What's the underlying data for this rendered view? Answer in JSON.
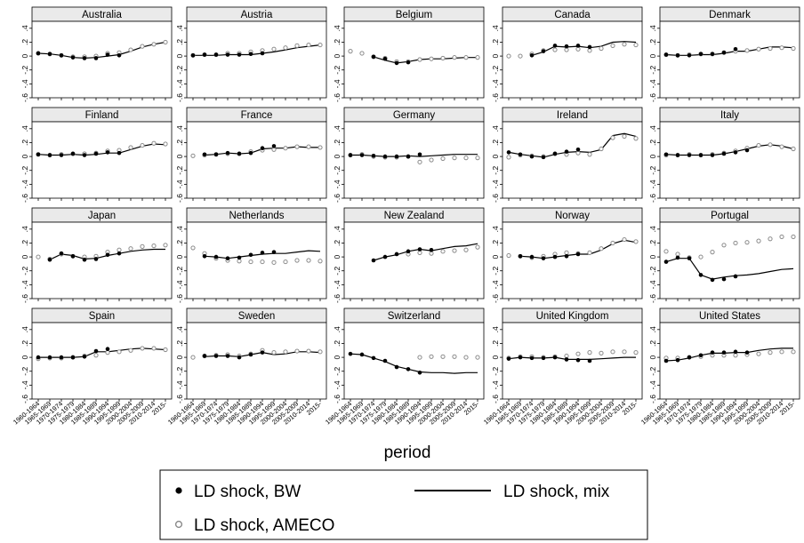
{
  "chart_data": {
    "type": "line",
    "xlabel": "period",
    "periods": [
      "1960-1964",
      "1965-1969",
      "1970-1974",
      "1975-1979",
      "1980-1984",
      "1985-1989",
      "1990-1994",
      "1995-1999",
      "2000-2004",
      "2005-2009",
      "2010-2014",
      "2015-"
    ],
    "y_ticks": [
      ".4",
      ".2",
      "0",
      "-.2",
      "-.4",
      "-.6"
    ],
    "ylim": [
      -0.6,
      0.5
    ],
    "legend": {
      "placement": "bottom",
      "items": [
        {
          "key": "bw",
          "label": "LD shock, BW",
          "marker": "filled-dot"
        },
        {
          "key": "mix",
          "label": "LD shock, mix",
          "marker": "line"
        },
        {
          "key": "ameco",
          "label": "LD shock, AMECO",
          "marker": "hollow-dot"
        }
      ]
    },
    "panels": [
      {
        "title": "Australia",
        "bw": [
          0.04,
          0.03,
          0.01,
          -0.02,
          -0.03,
          -0.03,
          0.02,
          0.01,
          null,
          null,
          null,
          null
        ],
        "mix": [
          0.04,
          0.03,
          0.01,
          -0.02,
          -0.03,
          -0.02,
          0.0,
          0.02,
          0.07,
          0.13,
          0.17,
          0.2
        ],
        "ameco": [
          0.04,
          0.03,
          0.01,
          -0.01,
          -0.01,
          0.0,
          0.04,
          0.05,
          0.09,
          0.14,
          0.17,
          0.2
        ]
      },
      {
        "title": "Austria",
        "bw": [
          0.01,
          0.02,
          0.02,
          0.02,
          0.02,
          0.03,
          0.04,
          null,
          null,
          null,
          null,
          null
        ],
        "mix": [
          0.01,
          0.01,
          0.01,
          0.02,
          0.02,
          0.02,
          0.04,
          0.06,
          0.09,
          0.12,
          0.14,
          0.16
        ],
        "ameco": [
          0.01,
          0.02,
          0.02,
          0.04,
          0.04,
          0.06,
          0.08,
          0.1,
          0.12,
          0.15,
          0.16,
          0.16
        ]
      },
      {
        "title": "Belgium",
        "bw": [
          null,
          null,
          -0.01,
          -0.04,
          -0.1,
          -0.09,
          null,
          null,
          null,
          null,
          null,
          null
        ],
        "mix": [
          null,
          null,
          -0.01,
          -0.06,
          -0.1,
          -0.08,
          -0.05,
          -0.04,
          -0.04,
          -0.03,
          -0.02,
          -0.02
        ],
        "ameco": [
          0.07,
          0.04,
          -0.01,
          -0.03,
          -0.08,
          -0.08,
          -0.05,
          -0.04,
          -0.03,
          -0.02,
          -0.02,
          -0.02
        ]
      },
      {
        "title": "Canada",
        "bw": [
          null,
          null,
          0.01,
          0.07,
          0.15,
          0.14,
          0.15,
          0.13,
          null,
          null,
          null,
          null
        ],
        "mix": [
          null,
          null,
          0.01,
          0.06,
          0.14,
          0.13,
          0.14,
          0.12,
          0.14,
          0.2,
          0.21,
          0.2
        ],
        "ameco": [
          0.0,
          0.0,
          0.03,
          0.08,
          0.09,
          0.09,
          0.1,
          0.08,
          0.11,
          0.15,
          0.17,
          0.16
        ]
      },
      {
        "title": "Denmark",
        "bw": [
          0.02,
          0.01,
          0.01,
          0.03,
          0.03,
          0.05,
          0.1,
          null,
          null,
          null,
          null,
          null
        ],
        "mix": [
          0.02,
          0.01,
          0.01,
          0.02,
          0.02,
          0.04,
          0.07,
          0.07,
          0.1,
          0.13,
          0.13,
          0.12
        ],
        "ameco": [
          0.02,
          0.01,
          0.02,
          0.03,
          0.03,
          0.05,
          0.07,
          0.08,
          0.1,
          0.11,
          0.12,
          0.11
        ]
      },
      {
        "title": "Finland",
        "bw": [
          0.03,
          0.02,
          0.02,
          0.04,
          0.02,
          0.04,
          0.06,
          0.05,
          null,
          null,
          null,
          null
        ],
        "mix": [
          0.03,
          0.02,
          0.02,
          0.03,
          0.02,
          0.03,
          0.05,
          0.05,
          0.1,
          0.15,
          0.18,
          0.17
        ],
        "ameco": [
          0.03,
          0.02,
          0.03,
          0.04,
          0.04,
          0.05,
          0.08,
          0.09,
          0.13,
          0.16,
          0.19,
          0.18
        ]
      },
      {
        "title": "France",
        "bw": [
          null,
          0.03,
          0.03,
          0.05,
          0.04,
          0.05,
          0.12,
          0.15,
          null,
          null,
          null,
          null
        ],
        "mix": [
          null,
          0.02,
          0.03,
          0.05,
          0.04,
          0.05,
          0.11,
          0.12,
          0.12,
          0.14,
          0.13,
          0.13
        ],
        "ameco": [
          0.01,
          0.02,
          0.03,
          0.04,
          0.04,
          0.07,
          0.09,
          0.1,
          0.12,
          0.14,
          0.14,
          0.13
        ]
      },
      {
        "title": "Germany",
        "bw": [
          0.02,
          0.02,
          0.01,
          0.0,
          0.0,
          0.0,
          0.03,
          null,
          null,
          null,
          null,
          null
        ],
        "mix": [
          0.02,
          0.02,
          0.01,
          0.0,
          0.0,
          0.01,
          0.0,
          0.01,
          0.02,
          0.03,
          0.03,
          0.03
        ],
        "ameco": [
          0.02,
          0.03,
          0.0,
          -0.01,
          -0.01,
          0.0,
          -0.08,
          -0.05,
          -0.03,
          -0.02,
          -0.02,
          -0.02
        ]
      },
      {
        "title": "Ireland",
        "bw": [
          0.06,
          0.03,
          0.0,
          -0.01,
          0.04,
          0.07,
          0.1,
          null,
          null,
          null,
          null,
          null
        ],
        "mix": [
          0.06,
          0.03,
          0.01,
          -0.01,
          0.03,
          0.06,
          0.07,
          0.06,
          0.1,
          0.3,
          0.33,
          0.29
        ],
        "ameco": [
          -0.01,
          0.02,
          0.01,
          0.0,
          0.04,
          0.03,
          0.05,
          0.03,
          0.11,
          0.27,
          0.29,
          0.26
        ]
      },
      {
        "title": "Italy",
        "bw": [
          0.03,
          0.02,
          0.02,
          0.02,
          0.02,
          0.04,
          0.06,
          0.09,
          null,
          null,
          null,
          null
        ],
        "mix": [
          0.03,
          0.02,
          0.02,
          0.02,
          0.02,
          0.04,
          0.07,
          0.11,
          0.15,
          0.17,
          0.15,
          0.11
        ],
        "ameco": [
          0.02,
          0.02,
          0.03,
          0.02,
          0.03,
          0.05,
          0.08,
          0.12,
          0.16,
          0.17,
          0.14,
          0.11
        ]
      },
      {
        "title": "Japan",
        "bw": [
          null,
          -0.04,
          0.05,
          0.01,
          -0.04,
          -0.03,
          0.03,
          0.05,
          null,
          null,
          null,
          null
        ],
        "mix": [
          null,
          -0.04,
          0.04,
          0.02,
          -0.03,
          -0.02,
          0.02,
          0.05,
          0.08,
          0.1,
          0.11,
          0.11
        ],
        "ameco": [
          0.0,
          -0.03,
          0.04,
          0.01,
          0.0,
          0.01,
          0.07,
          0.1,
          0.12,
          0.15,
          0.16,
          0.17
        ]
      },
      {
        "title": "Netherlands",
        "bw": [
          null,
          0.01,
          0.0,
          -0.02,
          -0.01,
          0.03,
          0.06,
          0.07,
          null,
          null,
          null,
          null
        ],
        "mix": [
          null,
          0.01,
          0.0,
          -0.02,
          0.0,
          0.02,
          0.04,
          0.05,
          0.05,
          0.07,
          0.09,
          0.08
        ],
        "ameco": [
          0.13,
          0.05,
          -0.02,
          -0.05,
          -0.06,
          -0.07,
          -0.07,
          -0.08,
          -0.07,
          -0.05,
          -0.05,
          -0.06
        ]
      },
      {
        "title": "New Zealand",
        "bw": [
          null,
          null,
          -0.05,
          0.0,
          0.04,
          0.08,
          0.11,
          0.1,
          null,
          null,
          null,
          null
        ],
        "mix": [
          null,
          null,
          -0.05,
          0.0,
          0.03,
          0.08,
          0.11,
          0.09,
          0.12,
          0.15,
          0.16,
          0.19
        ],
        "ameco": [
          null,
          null,
          null,
          null,
          null,
          0.04,
          0.06,
          0.05,
          0.08,
          0.09,
          0.1,
          0.14
        ]
      },
      {
        "title": "Norway",
        "bw": [
          null,
          0.01,
          0.0,
          -0.02,
          0.0,
          0.01,
          0.04,
          null,
          null,
          null,
          null,
          null
        ],
        "mix": [
          null,
          0.01,
          0.0,
          -0.02,
          0.0,
          0.02,
          0.04,
          0.04,
          0.1,
          0.19,
          0.24,
          0.21
        ],
        "ameco": [
          0.02,
          0.01,
          -0.01,
          0.01,
          0.04,
          0.06,
          0.05,
          0.06,
          0.12,
          0.2,
          0.25,
          0.22
        ]
      },
      {
        "title": "Portugal",
        "bw": [
          -0.07,
          -0.01,
          -0.02,
          -0.26,
          -0.33,
          -0.32,
          -0.28,
          null,
          null,
          null,
          null,
          null
        ],
        "mix": [
          -0.07,
          -0.02,
          -0.02,
          -0.26,
          -0.32,
          -0.29,
          -0.27,
          -0.26,
          -0.24,
          -0.21,
          -0.18,
          -0.17
        ],
        "ameco": [
          0.08,
          0.04,
          -0.01,
          0.0,
          0.07,
          0.17,
          0.2,
          0.21,
          0.23,
          0.26,
          0.29,
          0.29
        ]
      },
      {
        "title": "Spain",
        "bw": [
          0.0,
          0.0,
          0.0,
          0.0,
          0.01,
          0.09,
          0.12,
          null,
          null,
          null,
          null,
          null
        ],
        "mix": [
          0.0,
          0.0,
          0.0,
          0.0,
          0.01,
          0.08,
          0.08,
          0.1,
          0.12,
          0.13,
          0.12,
          0.11
        ],
        "ameco": [
          -0.02,
          -0.01,
          -0.01,
          0.0,
          0.02,
          0.03,
          0.07,
          0.08,
          0.1,
          0.13,
          0.13,
          0.11
        ]
      },
      {
        "title": "Sweden",
        "bw": [
          null,
          0.02,
          0.02,
          0.02,
          0.0,
          0.04,
          0.07,
          null,
          null,
          null,
          null,
          null
        ],
        "mix": [
          null,
          0.01,
          0.02,
          0.02,
          0.01,
          0.04,
          0.07,
          0.04,
          0.05,
          0.08,
          0.08,
          0.07
        ],
        "ameco": [
          0.0,
          0.02,
          0.03,
          0.04,
          0.02,
          0.05,
          0.1,
          0.07,
          0.08,
          0.09,
          0.09,
          0.08
        ]
      },
      {
        "title": "Switzerland",
        "bw": [
          0.05,
          0.04,
          -0.01,
          -0.05,
          -0.14,
          -0.17,
          -0.22,
          null,
          null,
          null,
          null,
          null
        ],
        "mix": [
          0.05,
          0.04,
          -0.01,
          -0.06,
          -0.13,
          -0.17,
          -0.21,
          -0.22,
          -0.22,
          -0.23,
          -0.22,
          -0.22
        ],
        "ameco": [
          null,
          null,
          null,
          null,
          null,
          null,
          0.0,
          0.01,
          0.01,
          0.01,
          0.0,
          0.0
        ]
      },
      {
        "title": "United Kingdom",
        "bw": [
          -0.02,
          0.0,
          -0.01,
          -0.01,
          0.0,
          -0.03,
          -0.04,
          -0.05,
          null,
          null,
          null,
          null
        ],
        "mix": [
          -0.02,
          0.0,
          -0.01,
          -0.01,
          0.0,
          -0.03,
          -0.03,
          -0.03,
          -0.02,
          -0.01,
          0.0,
          0.0
        ],
        "ameco": [
          -0.01,
          0.01,
          0.01,
          0.0,
          0.01,
          0.02,
          0.05,
          0.07,
          0.06,
          0.08,
          0.08,
          0.07
        ]
      },
      {
        "title": "United States",
        "bw": [
          -0.05,
          -0.04,
          0.0,
          0.03,
          0.07,
          0.07,
          0.08,
          0.07,
          null,
          null,
          null,
          null
        ],
        "mix": [
          -0.05,
          -0.04,
          -0.01,
          0.03,
          0.06,
          0.06,
          0.07,
          0.07,
          0.1,
          0.12,
          0.13,
          0.13
        ],
        "ameco": [
          -0.01,
          -0.01,
          0.0,
          0.01,
          0.03,
          0.03,
          0.03,
          0.04,
          0.05,
          0.07,
          0.08,
          0.08
        ]
      }
    ]
  }
}
